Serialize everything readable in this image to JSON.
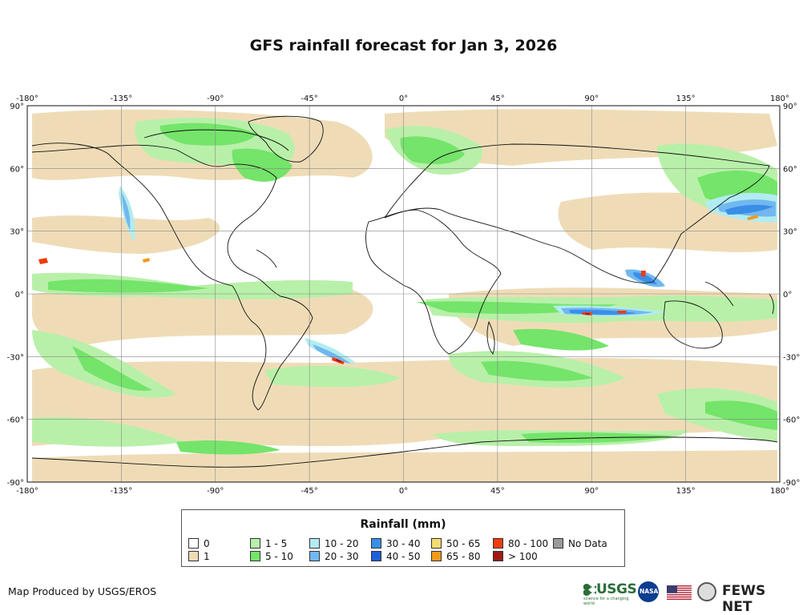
{
  "title": "GFS rainfall forecast for Jan 3, 2026",
  "axes": {
    "top_ticks": [
      "-180°",
      "-135°",
      "-90°",
      "-45°",
      "0°",
      "45°",
      "90°",
      "135°",
      "180°"
    ],
    "bottom_ticks": [
      "-180°",
      "-135°",
      "-90°",
      "-45°",
      "0°",
      "45°",
      "90°",
      "135°",
      "180°"
    ],
    "left_ticks": [
      "90°",
      "60°",
      "30°",
      "0°",
      "-30°",
      "-60°",
      "-90°"
    ],
    "right_ticks": [
      "90°",
      "60°",
      "30°",
      "0°",
      "-30°",
      "-60°",
      "-90°"
    ],
    "lon_values": [
      -180,
      -135,
      -90,
      -45,
      0,
      45,
      90,
      135,
      180
    ],
    "lat_values": [
      90,
      60,
      30,
      0,
      -30,
      -60,
      -90
    ]
  },
  "legend": {
    "title": "Rainfall (mm)",
    "items": [
      {
        "label": "0",
        "color": "#ffffff"
      },
      {
        "label": "1",
        "color": "#efdcb7"
      },
      {
        "label": "1 - 5",
        "color": "#b8f0a9"
      },
      {
        "label": "5 - 10",
        "color": "#74e46a"
      },
      {
        "label": "10 - 20",
        "color": "#b2ecf0"
      },
      {
        "label": "20 - 30",
        "color": "#71b8f0"
      },
      {
        "label": "30 - 40",
        "color": "#3a8ee6"
      },
      {
        "label": "40 - 50",
        "color": "#1f5fd8"
      },
      {
        "label": "50 - 65",
        "color": "#f5dc72"
      },
      {
        "label": "65 - 80",
        "color": "#f19a1a"
      },
      {
        "label": "80 - 100",
        "color": "#f03c0c"
      },
      {
        "label": "> 100",
        "color": "#a01a16"
      },
      {
        "label": "No Data",
        "color": "#999999"
      }
    ]
  },
  "credit": "Map Produced by USGS/EROS",
  "logos": {
    "usgs": "USGS",
    "usgs_tagline": "science for a changing world",
    "nasa": "NASA",
    "flag": "us-flag-icon",
    "seal": "state-department-seal-icon",
    "fews": "FEWS NET"
  }
}
